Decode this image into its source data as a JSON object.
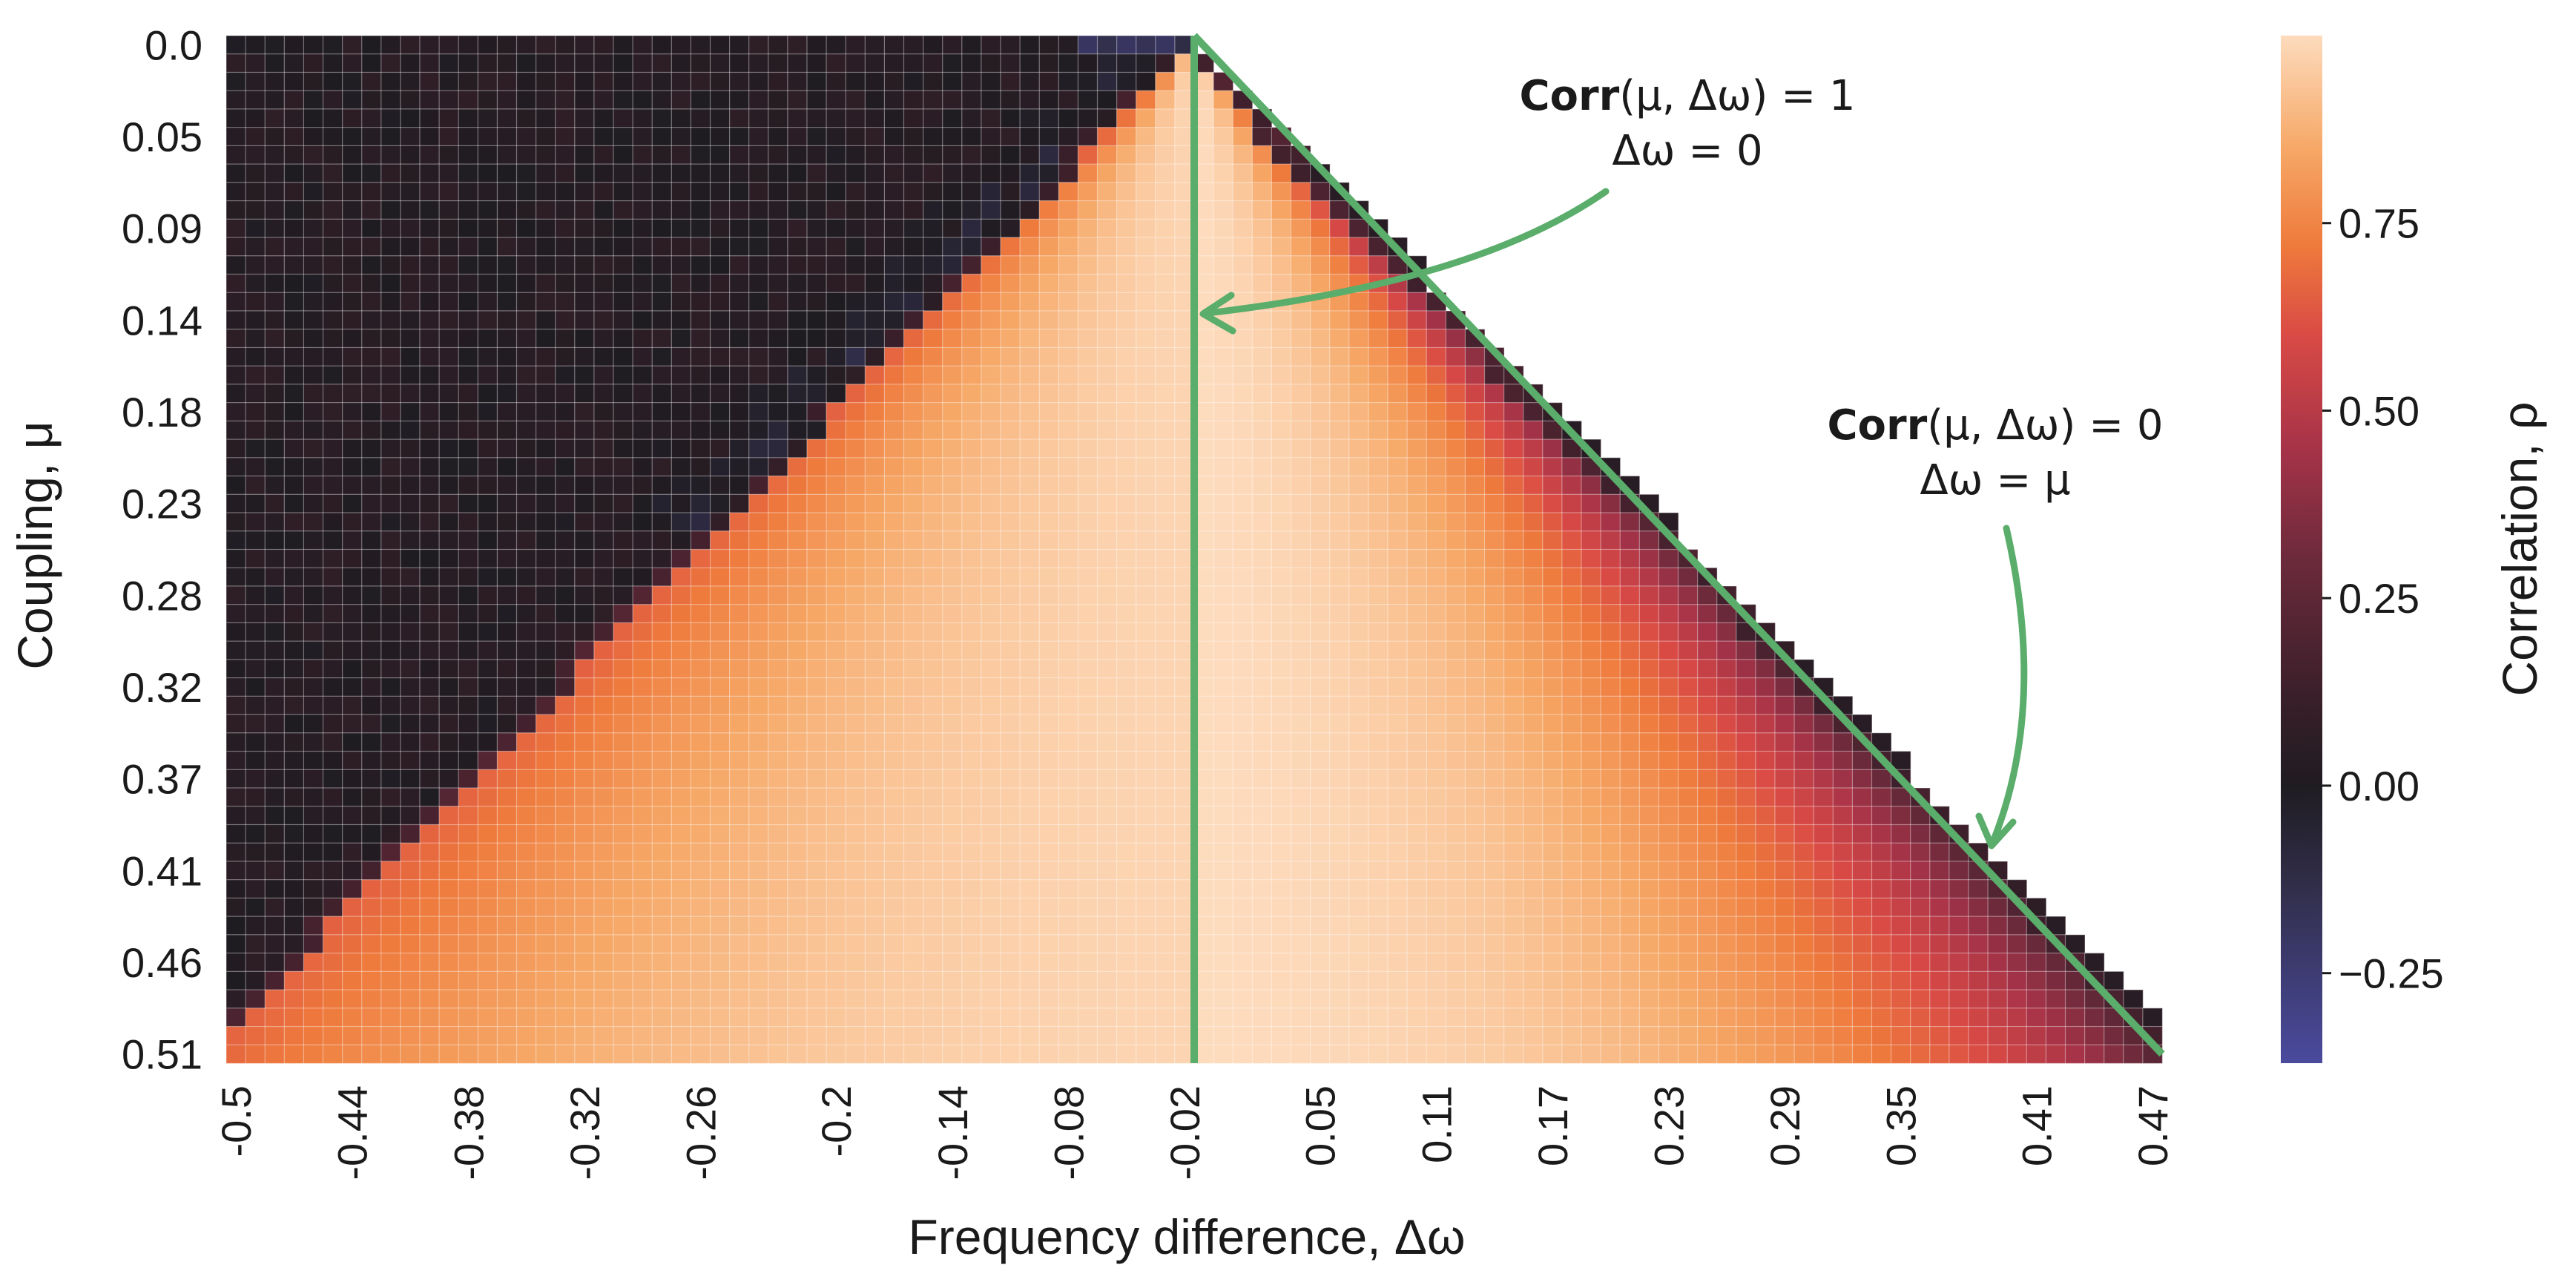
{
  "chart_data": {
    "type": "heatmap",
    "title": "",
    "xlabel": "Frequency difference, Δω",
    "ylabel": "Coupling, μ",
    "colorbar_label": "Correlation, ρ",
    "x_tick_labels": [
      "-0.5",
      "-0.44",
      "-0.38",
      "-0.32",
      "-0.26",
      "-0.2",
      "-0.14",
      "-0.08",
      "-0.02",
      "0.05",
      "0.11",
      "0.17",
      "0.23",
      "0.29",
      "0.35",
      "0.41",
      "0.47"
    ],
    "y_tick_labels": [
      "0.0",
      "0.05",
      "0.09",
      "0.14",
      "0.18",
      "0.23",
      "0.28",
      "0.32",
      "0.37",
      "0.41",
      "0.46",
      "0.51"
    ],
    "x_range": [
      -0.5,
      0.5
    ],
    "y_range": [
      0.0,
      0.51
    ],
    "n_cols": 100,
    "n_rows": 56,
    "colorbar": {
      "ticks": [
        -0.25,
        0.0,
        0.25,
        0.5,
        0.75
      ],
      "tick_labels": [
        "−0.25",
        "0.00",
        "0.25",
        "0.50",
        "0.75"
      ],
      "range": [
        -0.37,
        1.0
      ],
      "stops": [
        {
          "v": -0.37,
          "color": "#4a4a9e"
        },
        {
          "v": -0.15,
          "color": "#33304f"
        },
        {
          "v": 0.0,
          "color": "#1f1c21"
        },
        {
          "v": 0.12,
          "color": "#3a1f2a"
        },
        {
          "v": 0.3,
          "color": "#6b2a3b"
        },
        {
          "v": 0.45,
          "color": "#a63348"
        },
        {
          "v": 0.6,
          "color": "#d94a45"
        },
        {
          "v": 0.72,
          "color": "#ee7a3c"
        },
        {
          "v": 0.85,
          "color": "#f6a867"
        },
        {
          "v": 1.0,
          "color": "#fddbbd"
        }
      ]
    },
    "description_of_pattern": "Correlation is ~1 along Δω = 0, decays toward 0 at the boundary Δω = μ (right edge, triangle), and toward 0 in the upper-left region where μ < -Δω.",
    "annotations": [
      {
        "name": "diagonal-annotation-top",
        "bold": "Corr",
        "expr": "(μ, Δω) = 1",
        "line2": "Δω = 0",
        "points_to": "Δω = 0 line"
      },
      {
        "name": "diagonal-annotation-right",
        "bold": "Corr",
        "expr": "(μ, Δω) = 0",
        "line2": "Δω = μ",
        "points_to": "Δω = μ line"
      }
    ],
    "overlay_lines": [
      {
        "name": "delta-omega-zero-line",
        "equation": "Δω = 0",
        "color": "#5aad6a"
      },
      {
        "name": "delta-omega-equals-mu-line",
        "equation": "Δω = μ",
        "color": "#5aad6a"
      }
    ]
  }
}
